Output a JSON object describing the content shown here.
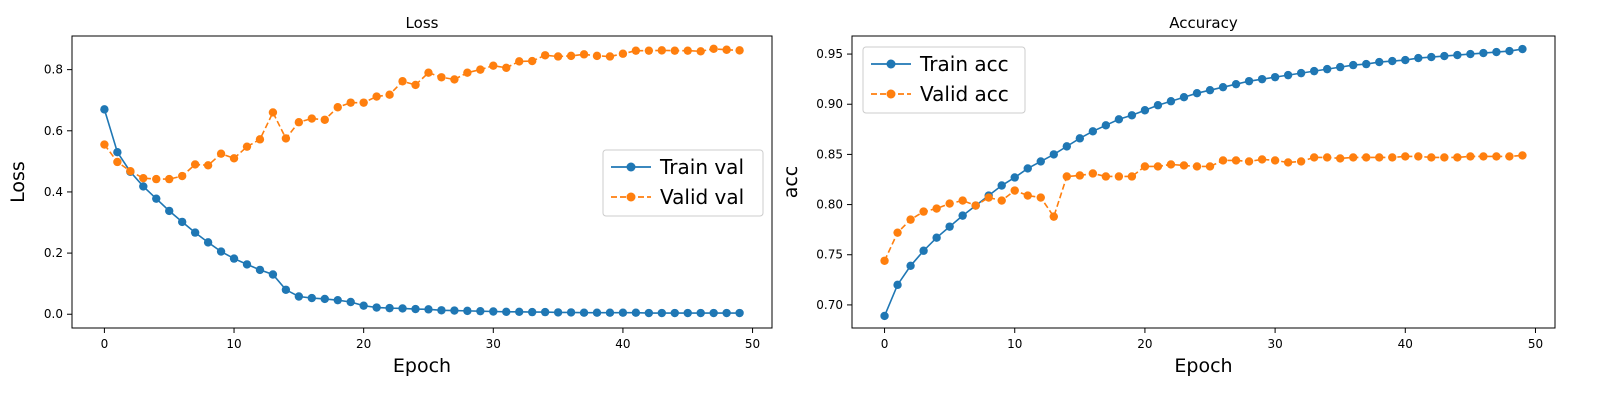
{
  "chart_data": [
    {
      "type": "line",
      "title": "Loss",
      "xlabel": "Epoch",
      "ylabel": "Loss",
      "xlim": [
        -2.5,
        51.5
      ],
      "ylim": [
        -0.045,
        0.91
      ],
      "xticks": [
        0,
        10,
        20,
        30,
        40,
        50
      ],
      "xtick_labels": [
        "0",
        "10",
        "20",
        "30",
        "40",
        "50"
      ],
      "yticks": [
        0.0,
        0.2,
        0.4,
        0.6,
        0.8
      ],
      "ytick_labels": [
        "0.0",
        "0.2",
        "0.4",
        "0.6",
        "0.8"
      ],
      "grid": false,
      "legend_position": "center-right",
      "x": [
        0,
        1,
        2,
        3,
        4,
        5,
        6,
        7,
        8,
        9,
        10,
        11,
        12,
        13,
        14,
        15,
        16,
        17,
        18,
        19,
        20,
        21,
        22,
        23,
        24,
        25,
        26,
        27,
        28,
        29,
        30,
        31,
        32,
        33,
        34,
        35,
        36,
        37,
        38,
        39,
        40,
        41,
        42,
        43,
        44,
        45,
        46,
        47,
        48,
        49
      ],
      "series": [
        {
          "name": "Train val",
          "color": "#1f77b4",
          "style": "solid",
          "values": [
            0.67,
            0.53,
            0.466,
            0.418,
            0.378,
            0.338,
            0.302,
            0.267,
            0.235,
            0.205,
            0.182,
            0.163,
            0.145,
            0.13,
            0.08,
            0.058,
            0.053,
            0.05,
            0.046,
            0.04,
            0.028,
            0.022,
            0.02,
            0.019,
            0.017,
            0.016,
            0.013,
            0.012,
            0.011,
            0.01,
            0.009,
            0.008,
            0.008,
            0.007,
            0.007,
            0.006,
            0.006,
            0.005,
            0.005,
            0.005,
            0.005,
            0.005,
            0.004,
            0.004,
            0.004,
            0.004,
            0.004,
            0.004,
            0.004,
            0.004
          ]
        },
        {
          "name": "Valid val",
          "color": "#ff7f0e",
          "style": "dashed",
          "values": [
            0.555,
            0.498,
            0.468,
            0.445,
            0.442,
            0.442,
            0.452,
            0.49,
            0.487,
            0.525,
            0.51,
            0.548,
            0.572,
            0.66,
            0.575,
            0.628,
            0.64,
            0.636,
            0.677,
            0.692,
            0.692,
            0.712,
            0.718,
            0.762,
            0.75,
            0.79,
            0.775,
            0.768,
            0.79,
            0.8,
            0.813,
            0.806,
            0.827,
            0.828,
            0.847,
            0.843,
            0.845,
            0.85,
            0.845,
            0.843,
            0.852,
            0.862,
            0.862,
            0.863,
            0.862,
            0.862,
            0.86,
            0.868,
            0.865,
            0.863
          ]
        }
      ]
    },
    {
      "type": "line",
      "title": "Accuracy",
      "xlabel": "Epoch",
      "ylabel": "acc",
      "xlim": [
        -2.5,
        51.5
      ],
      "ylim": [
        0.677,
        0.968
      ],
      "xticks": [
        0,
        10,
        20,
        30,
        40,
        50
      ],
      "xtick_labels": [
        "0",
        "10",
        "20",
        "30",
        "40",
        "50"
      ],
      "yticks": [
        0.7,
        0.75,
        0.8,
        0.85,
        0.9,
        0.95
      ],
      "ytick_labels": [
        "0.70",
        "0.75",
        "0.80",
        "0.85",
        "0.90",
        "0.95"
      ],
      "grid": false,
      "legend_position": "top-left",
      "x": [
        0,
        1,
        2,
        3,
        4,
        5,
        6,
        7,
        8,
        9,
        10,
        11,
        12,
        13,
        14,
        15,
        16,
        17,
        18,
        19,
        20,
        21,
        22,
        23,
        24,
        25,
        26,
        27,
        28,
        29,
        30,
        31,
        32,
        33,
        34,
        35,
        36,
        37,
        38,
        39,
        40,
        41,
        42,
        43,
        44,
        45,
        46,
        47,
        48,
        49
      ],
      "series": [
        {
          "name": "Train acc",
          "color": "#1f77b4",
          "style": "solid",
          "values": [
            0.689,
            0.72,
            0.739,
            0.754,
            0.767,
            0.778,
            0.789,
            0.799,
            0.809,
            0.819,
            0.827,
            0.836,
            0.843,
            0.85,
            0.858,
            0.866,
            0.873,
            0.879,
            0.885,
            0.889,
            0.894,
            0.899,
            0.903,
            0.907,
            0.911,
            0.914,
            0.917,
            0.92,
            0.923,
            0.925,
            0.927,
            0.929,
            0.931,
            0.933,
            0.935,
            0.937,
            0.939,
            0.94,
            0.942,
            0.943,
            0.944,
            0.946,
            0.947,
            0.948,
            0.949,
            0.95,
            0.951,
            0.952,
            0.953,
            0.955
          ]
        },
        {
          "name": "Valid acc",
          "color": "#ff7f0e",
          "style": "dashed",
          "values": [
            0.744,
            0.772,
            0.785,
            0.793,
            0.796,
            0.801,
            0.804,
            0.799,
            0.807,
            0.804,
            0.814,
            0.809,
            0.807,
            0.788,
            0.828,
            0.829,
            0.831,
            0.828,
            0.828,
            0.828,
            0.838,
            0.838,
            0.84,
            0.839,
            0.838,
            0.838,
            0.844,
            0.844,
            0.843,
            0.845,
            0.844,
            0.842,
            0.843,
            0.847,
            0.847,
            0.846,
            0.847,
            0.847,
            0.847,
            0.847,
            0.848,
            0.848,
            0.847,
            0.847,
            0.847,
            0.848,
            0.848,
            0.848,
            0.848,
            0.849
          ]
        }
      ]
    }
  ]
}
